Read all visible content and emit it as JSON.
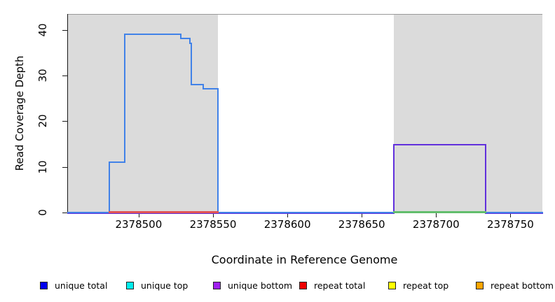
{
  "chart_data": {
    "type": "line",
    "title": "",
    "xlabel": "Coordinate in Reference Genome",
    "ylabel": "Read Coverage Depth",
    "xlim": [
      2378452,
      2378771
    ],
    "ylim": [
      0,
      43.5
    ],
    "xticks": [
      2378500,
      2378550,
      2378600,
      2378650,
      2378700,
      2378750
    ],
    "yticks": [
      0,
      10,
      20,
      30,
      40
    ],
    "grid": false,
    "background_color": "#ffffff",
    "shaded_region_color": "#dbdbdb",
    "shaded_regions": [
      {
        "x0": 2378452,
        "x1": 2378553
      },
      {
        "x0": 2378671,
        "x1": 2378771
      }
    ],
    "series": [
      {
        "name": "unique bottom",
        "color": "#6130dc",
        "points": [
          [
            2378452,
            0
          ],
          [
            2378671,
            0
          ],
          [
            2378671,
            15
          ],
          [
            2378733,
            15
          ],
          [
            2378733,
            0
          ],
          [
            2378771,
            0
          ]
        ]
      },
      {
        "name": "unique total",
        "color": "#4182e8",
        "points": [
          [
            2378452,
            0
          ],
          [
            2378480,
            0
          ],
          [
            2378480,
            11
          ],
          [
            2378490,
            11
          ],
          [
            2378490,
            39
          ],
          [
            2378528,
            39
          ],
          [
            2378528,
            38
          ],
          [
            2378534,
            38
          ],
          [
            2378534,
            37
          ],
          [
            2378535,
            37
          ],
          [
            2378535,
            28
          ],
          [
            2378543,
            28
          ],
          [
            2378543,
            27
          ],
          [
            2378553,
            27
          ],
          [
            2378553,
            0
          ],
          [
            2378771,
            0
          ]
        ]
      },
      {
        "name": "green zero segment",
        "color": "#62be6c",
        "points": [
          [
            2378671,
            0
          ],
          [
            2378733,
            0
          ]
        ]
      },
      {
        "name": "repeat total",
        "color": "#e25555",
        "points": [
          [
            2378480,
            0
          ],
          [
            2378553,
            0
          ]
        ]
      }
    ],
    "legend": {
      "position": "bottom",
      "items": [
        {
          "label": "unique total",
          "color": "#0000ee"
        },
        {
          "label": "unique top",
          "color": "#00eeee"
        },
        {
          "label": "unique bottom",
          "color": "#a020f0"
        },
        {
          "label": "repeat total",
          "color": "#ee0000"
        },
        {
          "label": "repeat top",
          "color": "#ffff00"
        },
        {
          "label": "repeat bottom",
          "color": "#ffa500"
        }
      ]
    }
  }
}
